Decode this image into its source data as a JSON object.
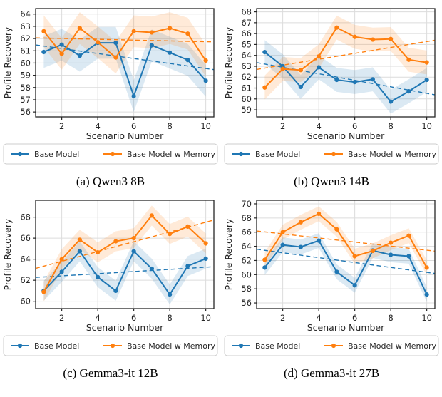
{
  "colors": {
    "base_series": "#1f77b4",
    "memory_series": "#ff7f0e",
    "grid": "#dcdcdc",
    "spine": "#262626",
    "tick_label": "#262626",
    "legend_border": "#cccccc",
    "background": "#ffffff"
  },
  "legend_labels": [
    "Base Model",
    "Base Model w Memory"
  ],
  "chart_data": [
    {
      "id": "a",
      "type": "line",
      "caption": "(a) Qwen3 8B",
      "xlabel": "Scenario Number",
      "ylabel": "Profile Recovery",
      "x": [
        1,
        2,
        3,
        4,
        5,
        6,
        7,
        8,
        9,
        10
      ],
      "xticks": [
        2,
        4,
        6,
        8,
        10
      ],
      "xlim": [
        0.55,
        10.45
      ],
      "ylim": [
        55.6,
        64.45
      ],
      "yticks": [
        56,
        57,
        58,
        59,
        60,
        61,
        62,
        63,
        64
      ],
      "grid": true,
      "legend_position": "below",
      "trend": "ols-dashed",
      "series": [
        {
          "name": "Base Model",
          "key": "base-model",
          "color": "#1f77b4",
          "values": [
            60.9,
            61.5,
            60.6,
            61.65,
            61.65,
            57.3,
            61.45,
            60.85,
            60.25,
            58.55
          ],
          "band_halfwidth": 1.3
        },
        {
          "name": "Base Model w Memory",
          "key": "base-model-w-memory",
          "color": "#ff7f0e",
          "values": [
            62.6,
            60.75,
            62.85,
            61.7,
            60.45,
            62.6,
            62.5,
            62.85,
            62.4,
            60.2
          ],
          "band_halfwidth": 1.3
        }
      ]
    },
    {
      "id": "b",
      "type": "line",
      "caption": "(b) Qwen3 14B",
      "xlabel": "Scenario Number",
      "ylabel": "Profile Recovery",
      "x": [
        1,
        2,
        3,
        4,
        5,
        6,
        7,
        8,
        9,
        10
      ],
      "xticks": [
        2,
        4,
        6,
        8,
        10
      ],
      "xlim": [
        0.55,
        10.45
      ],
      "ylim": [
        58.35,
        68.3
      ],
      "yticks": [
        59,
        60,
        61,
        62,
        63,
        64,
        65,
        66,
        67,
        68
      ],
      "grid": true,
      "legend_position": "below",
      "trend": "ols-dashed",
      "series": [
        {
          "name": "Base Model",
          "key": "base-model",
          "color": "#1f77b4",
          "values": [
            64.3,
            63.0,
            61.1,
            62.9,
            61.75,
            61.55,
            61.8,
            59.75,
            60.7,
            61.75
          ],
          "band_halfwidth": 1.1
        },
        {
          "name": "Base Model w Memory",
          "key": "base-model-w-memory",
          "color": "#ff7f0e",
          "values": [
            61.05,
            62.75,
            62.65,
            63.9,
            66.55,
            65.7,
            65.45,
            65.5,
            63.6,
            63.35
          ],
          "band_halfwidth": 1.1
        }
      ]
    },
    {
      "id": "c",
      "type": "line",
      "caption": "(c) Gemma3-it 12B",
      "xlabel": "Scenario Number",
      "ylabel": "Profile Recovery",
      "x": [
        1,
        2,
        3,
        4,
        5,
        6,
        7,
        8,
        9,
        10
      ],
      "xticks": [
        2,
        4,
        6,
        8,
        10
      ],
      "xlim": [
        0.55,
        10.45
      ],
      "ylim": [
        59.3,
        69.6
      ],
      "yticks": [
        60,
        62,
        64,
        66,
        68
      ],
      "grid": true,
      "legend_position": "below",
      "trend": "ols-dashed",
      "series": [
        {
          "name": "Base Model",
          "key": "base-model",
          "color": "#1f77b4",
          "values": [
            61.0,
            62.8,
            64.75,
            62.3,
            61.0,
            64.75,
            63.1,
            60.65,
            63.35,
            64.05
          ],
          "band_halfwidth": 0.95
        },
        {
          "name": "Base Model w Memory",
          "key": "base-model-w-memory",
          "color": "#ff7f0e",
          "values": [
            60.9,
            64.0,
            65.85,
            64.65,
            65.7,
            66.0,
            68.15,
            66.4,
            67.1,
            65.5
          ],
          "band_halfwidth": 0.95
        }
      ]
    },
    {
      "id": "d",
      "type": "line",
      "caption": "(d) Gemma3-it 27B",
      "xlabel": "Scenario Number",
      "ylabel": "Profile Recovery",
      "x": [
        1,
        2,
        3,
        4,
        5,
        6,
        7,
        8,
        9,
        10
      ],
      "xticks": [
        2,
        4,
        6,
        8,
        10
      ],
      "xlim": [
        0.55,
        10.45
      ],
      "ylim": [
        55.2,
        70.5
      ],
      "yticks": [
        56,
        58,
        60,
        62,
        64,
        66,
        68,
        70
      ],
      "grid": true,
      "legend_position": "below",
      "trend": "ols-dashed",
      "series": [
        {
          "name": "Base Model",
          "key": "base-model",
          "color": "#1f77b4",
          "values": [
            61.0,
            64.2,
            63.9,
            64.8,
            60.4,
            58.5,
            63.4,
            62.8,
            62.6,
            57.2
          ],
          "band_halfwidth": 1.05
        },
        {
          "name": "Base Model w Memory",
          "key": "base-model-w-memory",
          "color": "#ff7f0e",
          "values": [
            62.1,
            66.0,
            67.4,
            68.6,
            66.4,
            62.6,
            63.35,
            64.5,
            65.5,
            61.0
          ],
          "band_halfwidth": 1.05
        }
      ]
    }
  ]
}
